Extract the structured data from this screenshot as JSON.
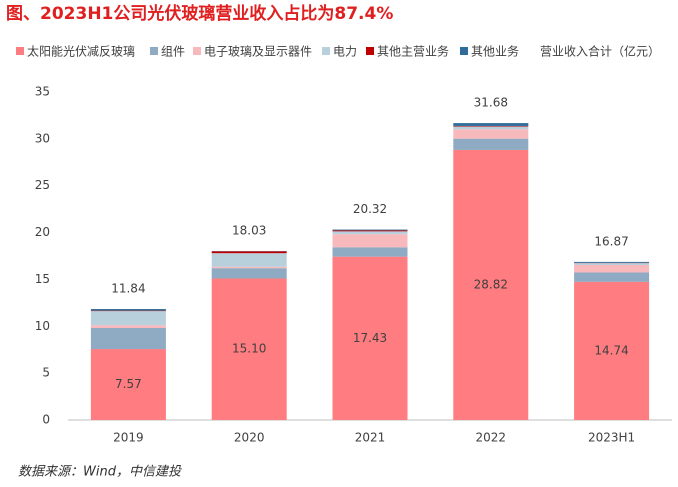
{
  "chart_data": {
    "type": "stacked-bar",
    "title": "图、2023H1公司光伏玻璃营业收入占比为87.4%",
    "source": "数据来源：Wind，中信建投",
    "categories": [
      "2019",
      "2020",
      "2021",
      "2022",
      "2023H1"
    ],
    "series": [
      {
        "name": "太阳能光伏减反玻璃",
        "color": "#ff7c80",
        "values": [
          7.57,
          15.1,
          17.43,
          28.82,
          14.74
        ],
        "value_labels": [
          "7.57",
          "15.10",
          "17.43",
          "28.82",
          "14.74"
        ]
      },
      {
        "name": "组件",
        "color": "#8faac3",
        "values": [
          2.25,
          1.1,
          1.0,
          1.2,
          1.0
        ]
      },
      {
        "name": "电子玻璃及显示器件",
        "color": "#f8b9bd",
        "values": [
          0.3,
          0.15,
          1.4,
          1.0,
          0.8
        ]
      },
      {
        "name": "电力",
        "color": "#b8cfdc",
        "values": [
          1.5,
          1.45,
          0.3,
          0.3,
          0.2
        ]
      },
      {
        "name": "其他主营业务",
        "color": "#c00000",
        "values": [
          0.05,
          0.2,
          0.1,
          0.06,
          0.03
        ]
      },
      {
        "name": "其他业务",
        "color": "#2f6c99",
        "values": [
          0.17,
          0.03,
          0.09,
          0.3,
          0.1
        ]
      }
    ],
    "totals": {
      "name": "营业收入合计（亿元）",
      "values": [
        11.84,
        18.03,
        20.32,
        31.68,
        16.87
      ]
    },
    "ylim": [
      0,
      35
    ],
    "yticks": [
      0,
      5,
      10,
      15,
      20,
      25,
      30,
      35
    ],
    "grid": false
  }
}
